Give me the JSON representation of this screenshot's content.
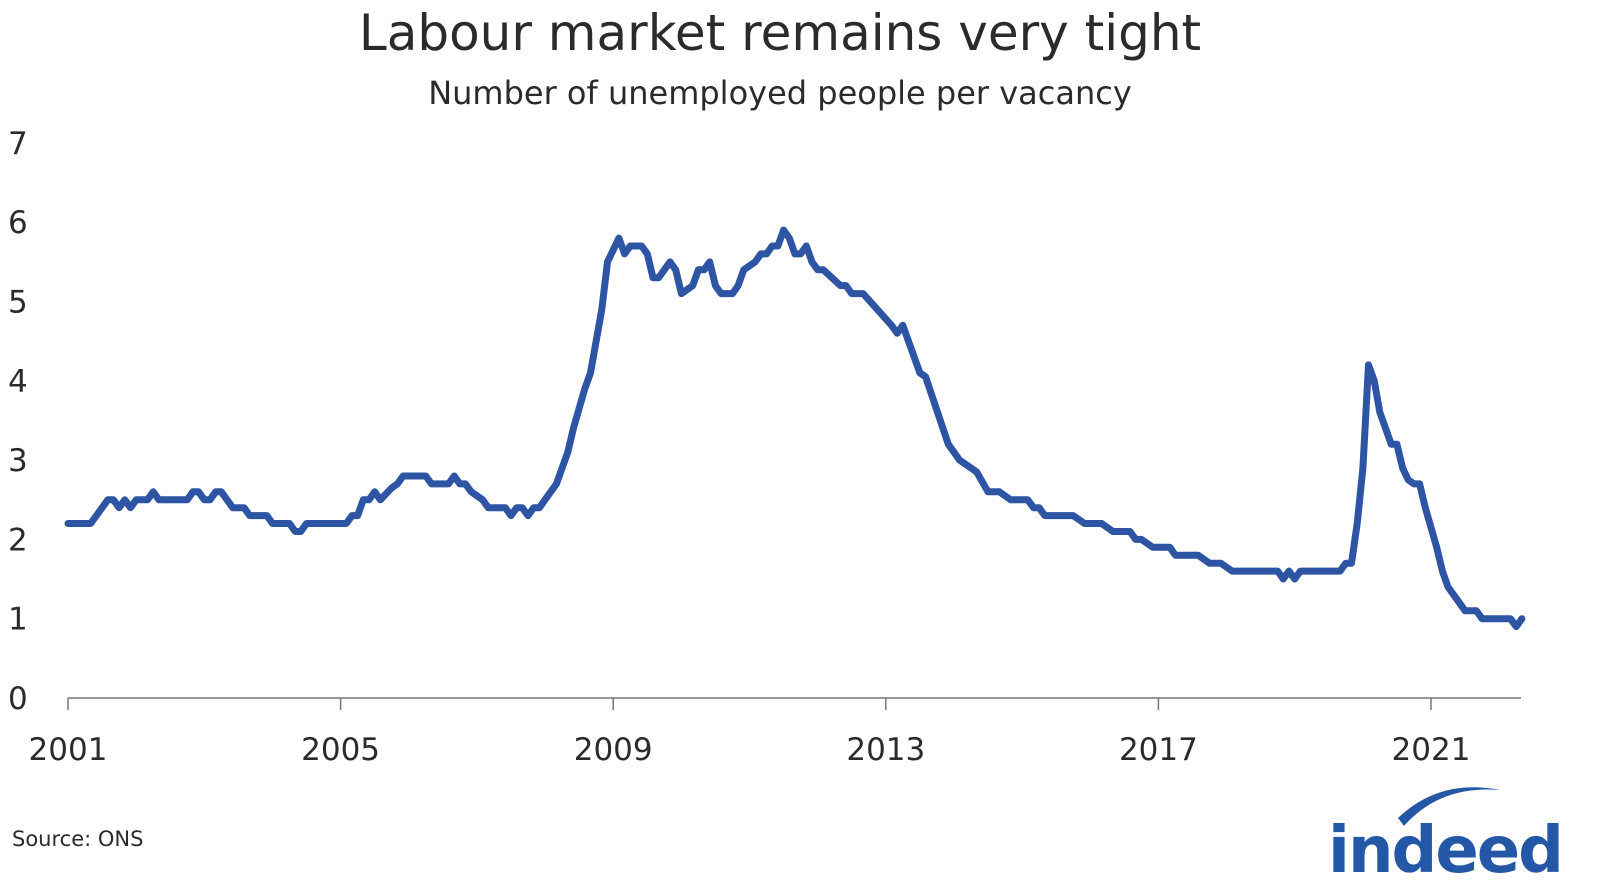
{
  "chart_data": {
    "type": "line",
    "title": "Labour market remains very tight",
    "subtitle": "Number of unemployed people per vacancy",
    "xlabel": "",
    "ylabel": "",
    "ylim": [
      0,
      7
    ],
    "yticks": [
      "0",
      "1",
      "2",
      "3",
      "4",
      "5",
      "6",
      "7"
    ],
    "xlim": [
      "2001-01",
      "2022-05"
    ],
    "xticks": [
      "2001",
      "2005",
      "2009",
      "2013",
      "2017",
      "2021"
    ],
    "grid": false,
    "line_color": "#2d55a4",
    "series": [
      {
        "points": [
          [
            "2001-01",
            2.2
          ],
          [
            "2001-05",
            2.2
          ],
          [
            "2001-08",
            2.5
          ],
          [
            "2001-09",
            2.5
          ],
          [
            "2001-10",
            2.4
          ],
          [
            "2001-11",
            2.5
          ],
          [
            "2001-12",
            2.4
          ],
          [
            "2002-01",
            2.5
          ],
          [
            "2002-03",
            2.5
          ],
          [
            "2002-04",
            2.6
          ],
          [
            "2002-05",
            2.5
          ],
          [
            "2002-10",
            2.5
          ],
          [
            "2002-11",
            2.6
          ],
          [
            "2002-12",
            2.6
          ],
          [
            "2003-01",
            2.5
          ],
          [
            "2003-02",
            2.5
          ],
          [
            "2003-03",
            2.6
          ],
          [
            "2003-04",
            2.6
          ],
          [
            "2003-06",
            2.4
          ],
          [
            "2003-08",
            2.4
          ],
          [
            "2003-09",
            2.3
          ],
          [
            "2003-12",
            2.3
          ],
          [
            "2004-01",
            2.2
          ],
          [
            "2004-04",
            2.2
          ],
          [
            "2004-05",
            2.1
          ],
          [
            "2004-06",
            2.1
          ],
          [
            "2004-07",
            2.2
          ],
          [
            "2005-02",
            2.2
          ],
          [
            "2005-03",
            2.3
          ],
          [
            "2005-04",
            2.3
          ],
          [
            "2005-05",
            2.5
          ],
          [
            "2005-06",
            2.5
          ],
          [
            "2005-07",
            2.6
          ],
          [
            "2005-08",
            2.5
          ],
          [
            "2005-10",
            2.65
          ],
          [
            "2005-11",
            2.7
          ],
          [
            "2005-12",
            2.8
          ],
          [
            "2006-04",
            2.8
          ],
          [
            "2006-05",
            2.7
          ],
          [
            "2006-08",
            2.7
          ],
          [
            "2006-09",
            2.8
          ],
          [
            "2006-10",
            2.7
          ],
          [
            "2006-11",
            2.7
          ],
          [
            "2006-12",
            2.6
          ],
          [
            "2007-01",
            2.55
          ],
          [
            "2007-02",
            2.5
          ],
          [
            "2007-03",
            2.4
          ],
          [
            "2007-06",
            2.4
          ],
          [
            "2007-07",
            2.3
          ],
          [
            "2007-08",
            2.4
          ],
          [
            "2007-09",
            2.4
          ],
          [
            "2007-10",
            2.3
          ],
          [
            "2007-11",
            2.4
          ],
          [
            "2007-12",
            2.4
          ],
          [
            "2008-02",
            2.6
          ],
          [
            "2008-03",
            2.7
          ],
          [
            "2008-04",
            2.9
          ],
          [
            "2008-05",
            3.1
          ],
          [
            "2008-06",
            3.4
          ],
          [
            "2008-08",
            3.9
          ],
          [
            "2008-09",
            4.1
          ],
          [
            "2008-11",
            4.9
          ],
          [
            "2008-12",
            5.5
          ],
          [
            "2009-02",
            5.8
          ],
          [
            "2009-03",
            5.6
          ],
          [
            "2009-04",
            5.7
          ],
          [
            "2009-06",
            5.7
          ],
          [
            "2009-07",
            5.6
          ],
          [
            "2009-08",
            5.3
          ],
          [
            "2009-09",
            5.3
          ],
          [
            "2009-11",
            5.5
          ],
          [
            "2009-12",
            5.4
          ],
          [
            "2010-01",
            5.1
          ],
          [
            "2010-03",
            5.2
          ],
          [
            "2010-04",
            5.4
          ],
          [
            "2010-05",
            5.4
          ],
          [
            "2010-06",
            5.5
          ],
          [
            "2010-07",
            5.2
          ],
          [
            "2010-08",
            5.1
          ],
          [
            "2010-10",
            5.1
          ],
          [
            "2010-11",
            5.2
          ],
          [
            "2010-12",
            5.4
          ],
          [
            "2011-02",
            5.5
          ],
          [
            "2011-03",
            5.6
          ],
          [
            "2011-04",
            5.6
          ],
          [
            "2011-05",
            5.7
          ],
          [
            "2011-06",
            5.7
          ],
          [
            "2011-07",
            5.9
          ],
          [
            "2011-08",
            5.8
          ],
          [
            "2011-09",
            5.6
          ],
          [
            "2011-10",
            5.6
          ],
          [
            "2011-11",
            5.7
          ],
          [
            "2011-12",
            5.5
          ],
          [
            "2012-01",
            5.4
          ],
          [
            "2012-02",
            5.4
          ],
          [
            "2012-05",
            5.2
          ],
          [
            "2012-06",
            5.2
          ],
          [
            "2012-07",
            5.1
          ],
          [
            "2012-09",
            5.1
          ],
          [
            "2013-02",
            4.7
          ],
          [
            "2013-03",
            4.6
          ],
          [
            "2013-04",
            4.7
          ],
          [
            "2013-07",
            4.1
          ],
          [
            "2013-08",
            4.05
          ],
          [
            "2013-12",
            3.2
          ],
          [
            "2014-02",
            3.0
          ],
          [
            "2014-04",
            2.9
          ],
          [
            "2014-05",
            2.85
          ],
          [
            "2014-07",
            2.6
          ],
          [
            "2014-09",
            2.6
          ],
          [
            "2014-11",
            2.5
          ],
          [
            "2015-02",
            2.5
          ],
          [
            "2015-03",
            2.4
          ],
          [
            "2015-04",
            2.4
          ],
          [
            "2015-05",
            2.3
          ],
          [
            "2015-10",
            2.3
          ],
          [
            "2015-12",
            2.2
          ],
          [
            "2016-03",
            2.2
          ],
          [
            "2016-05",
            2.1
          ],
          [
            "2016-08",
            2.1
          ],
          [
            "2016-09",
            2.0
          ],
          [
            "2016-10",
            2.0
          ],
          [
            "2016-12",
            1.9
          ],
          [
            "2017-03",
            1.9
          ],
          [
            "2017-04",
            1.8
          ],
          [
            "2017-08",
            1.8
          ],
          [
            "2017-10",
            1.7
          ],
          [
            "2017-12",
            1.7
          ],
          [
            "2018-02",
            1.6
          ],
          [
            "2018-10",
            1.6
          ],
          [
            "2018-11",
            1.5
          ],
          [
            "2018-12",
            1.6
          ],
          [
            "2019-01",
            1.5
          ],
          [
            "2019-02",
            1.6
          ],
          [
            "2019-09",
            1.6
          ],
          [
            "2019-10",
            1.7
          ],
          [
            "2019-11",
            1.7
          ],
          [
            "2019-12",
            2.2
          ],
          [
            "2020-01",
            2.9
          ],
          [
            "2020-02",
            4.2
          ],
          [
            "2020-03",
            4.0
          ],
          [
            "2020-04",
            3.6
          ],
          [
            "2020-05",
            3.4
          ],
          [
            "2020-06",
            3.2
          ],
          [
            "2020-07",
            3.2
          ],
          [
            "2020-08",
            2.9
          ],
          [
            "2020-09",
            2.75
          ],
          [
            "2020-10",
            2.7
          ],
          [
            "2020-11",
            2.7
          ],
          [
            "2020-12",
            2.4
          ],
          [
            "2021-02",
            1.9
          ],
          [
            "2021-03",
            1.6
          ],
          [
            "2021-04",
            1.4
          ],
          [
            "2021-06",
            1.2
          ],
          [
            "2021-07",
            1.1
          ],
          [
            "2021-08",
            1.1
          ],
          [
            "2021-09",
            1.1
          ],
          [
            "2021-10",
            1.0
          ],
          [
            "2022-01",
            1.0
          ],
          [
            "2022-03",
            1.0
          ],
          [
            "2022-04",
            0.9
          ],
          [
            "2022-05",
            1.0
          ]
        ]
      }
    ],
    "source": "Source: ONS"
  },
  "logo": {
    "text": "indeed",
    "color": "#2557a7"
  }
}
